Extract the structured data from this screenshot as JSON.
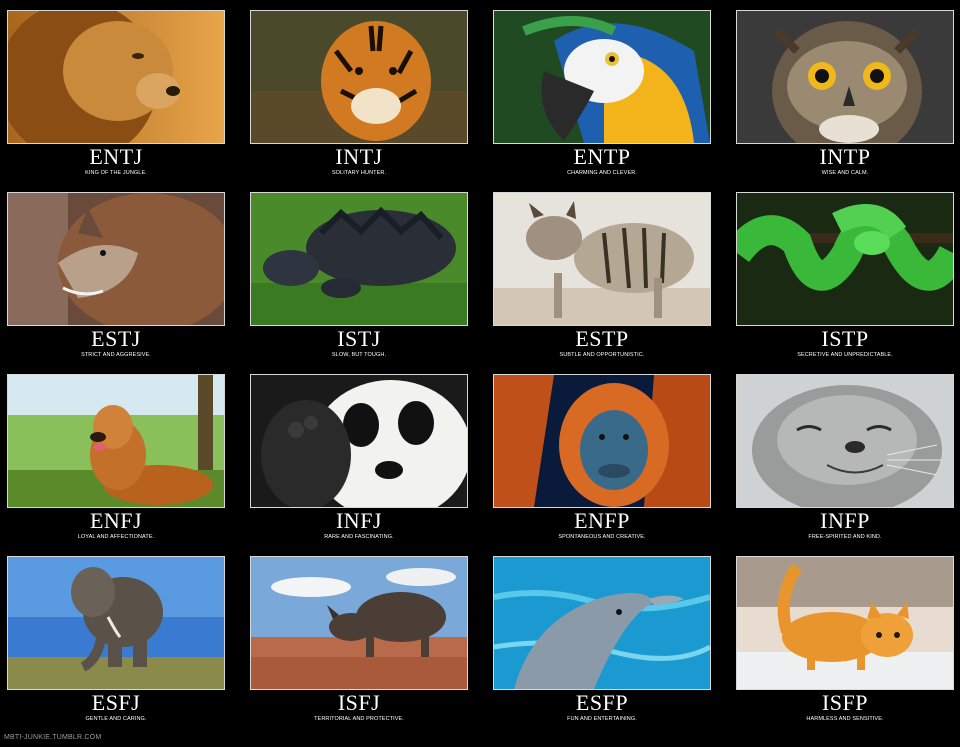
{
  "cells": [
    {
      "code": "ENTJ",
      "desc": "KING OF THE JUNGLE.",
      "animal": "lion"
    },
    {
      "code": "INTJ",
      "desc": "SOLITARY HUNTER.",
      "animal": "tiger"
    },
    {
      "code": "ENTP",
      "desc": "CHARMING AND CLEVER.",
      "animal": "macaw"
    },
    {
      "code": "INTP",
      "desc": "WISE AND CALM.",
      "animal": "owl"
    },
    {
      "code": "ESTJ",
      "desc": "STRICT AND AGGRESIVE.",
      "animal": "wolf"
    },
    {
      "code": "ISTJ",
      "desc": "SLOW, BUT TOUGH.",
      "animal": "snapping-turtle"
    },
    {
      "code": "ESTP",
      "desc": "SUBTLE AND OPPORTUNISTIC.",
      "animal": "hyena"
    },
    {
      "code": "ISTP",
      "desc": "SECRETIVE AND UNPREDICTABLE.",
      "animal": "green-tree-python"
    },
    {
      "code": "ENFJ",
      "desc": "LOYAL AND AFFECTIONATE.",
      "animal": "golden-retriever"
    },
    {
      "code": "INFJ",
      "desc": "RARE AND FASCINATING.",
      "animal": "panda"
    },
    {
      "code": "ENFP",
      "desc": "SPONTANEOUS AND CREATIVE.",
      "animal": "orangutan"
    },
    {
      "code": "INFP",
      "desc": "FREE-SPIRITED AND KIND.",
      "animal": "seal"
    },
    {
      "code": "ESFJ",
      "desc": "GENTLE AND CARING.",
      "animal": "elephant"
    },
    {
      "code": "ISFJ",
      "desc": "TERRITORIAL AND PROTECTIVE.",
      "animal": "rhinoceros"
    },
    {
      "code": "ESFP",
      "desc": "FUN AND ENTERTAINING.",
      "animal": "dolphin"
    },
    {
      "code": "ISFP",
      "desc": "HARMLESS AND SENSITIVE.",
      "animal": "kitten"
    }
  ],
  "watermark": "MBTI-JUNKIE.TUMBLR.COM"
}
